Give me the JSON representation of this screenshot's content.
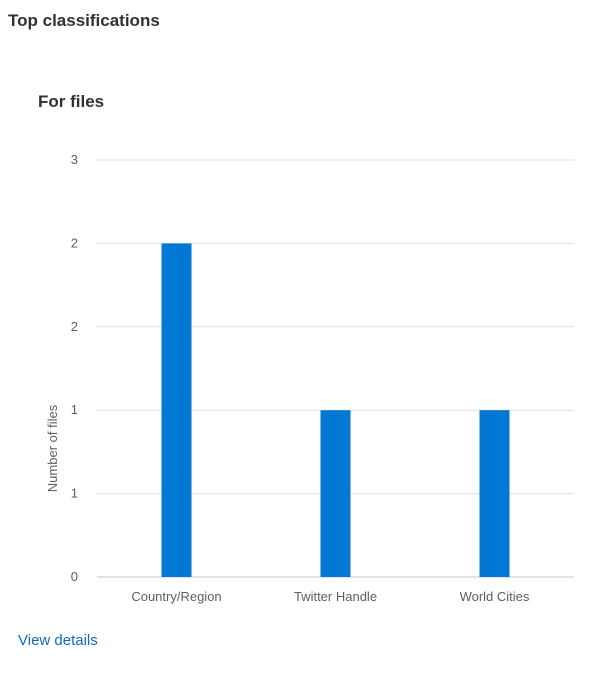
{
  "page": {
    "section_title": "Top classifications",
    "view_details_label": "View details"
  },
  "chart_data": {
    "type": "bar",
    "title": "For files",
    "xlabel": "",
    "ylabel": "Number of files",
    "categories": [
      "Country/Region",
      "Twitter Handle",
      "World Cities"
    ],
    "values": [
      2,
      1,
      1
    ],
    "ylim": [
      0,
      2.5
    ],
    "y_tick_labels": [
      "0",
      "1",
      "1",
      "2",
      "2",
      "3"
    ],
    "grid": true,
    "legend": "none",
    "colors": {
      "bar": "#0078d4",
      "grid": "#e1dfdd",
      "axis": "#c8c6c4",
      "text": "#605e5c"
    }
  }
}
